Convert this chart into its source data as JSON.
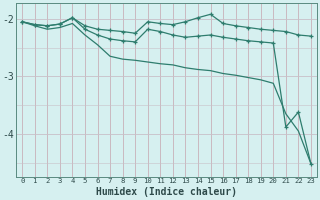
{
  "xlabel": "Humidex (Indice chaleur)",
  "ylabel": "",
  "bg_color": "#d6f0f0",
  "line_color": "#2e7d6e",
  "grid_color_v": "#c8b0b8",
  "grid_color_h": "#c8c0c8",
  "x_values": [
    0,
    1,
    2,
    3,
    4,
    5,
    6,
    7,
    8,
    9,
    10,
    11,
    12,
    13,
    14,
    15,
    16,
    17,
    18,
    19,
    20,
    21,
    22,
    23
  ],
  "line1": [
    -2.05,
    -2.1,
    -2.12,
    -2.09,
    -1.98,
    -2.12,
    -2.18,
    -2.2,
    -2.22,
    -2.25,
    -2.05,
    -2.08,
    -2.1,
    -2.05,
    -1.98,
    -1.92,
    -2.08,
    -2.12,
    -2.15,
    -2.18,
    -2.2,
    -2.22,
    -2.28,
    -2.3
  ],
  "line2": [
    -2.05,
    -2.1,
    -2.12,
    -2.09,
    -1.98,
    -2.18,
    -2.28,
    -2.35,
    -2.38,
    -2.4,
    -2.18,
    -2.22,
    -2.28,
    -2.32,
    -2.3,
    -2.28,
    -2.32,
    -2.35,
    -2.38,
    -2.4,
    -2.42,
    -3.88,
    -3.62,
    -4.52
  ],
  "line3": [
    -2.05,
    -2.12,
    -2.18,
    -2.15,
    -2.08,
    -2.28,
    -2.45,
    -2.65,
    -2.7,
    -2.72,
    -2.75,
    -2.78,
    -2.8,
    -2.85,
    -2.88,
    -2.9,
    -2.95,
    -2.98,
    -3.02,
    -3.06,
    -3.12,
    -3.65,
    -3.95,
    -4.52
  ],
  "ylim": [
    -4.75,
    -1.72
  ],
  "yticks": [
    -4.0,
    -3.0,
    -2.0
  ],
  "xtick_fontsize": 5.2,
  "ytick_fontsize": 7,
  "xlabel_fontsize": 7
}
